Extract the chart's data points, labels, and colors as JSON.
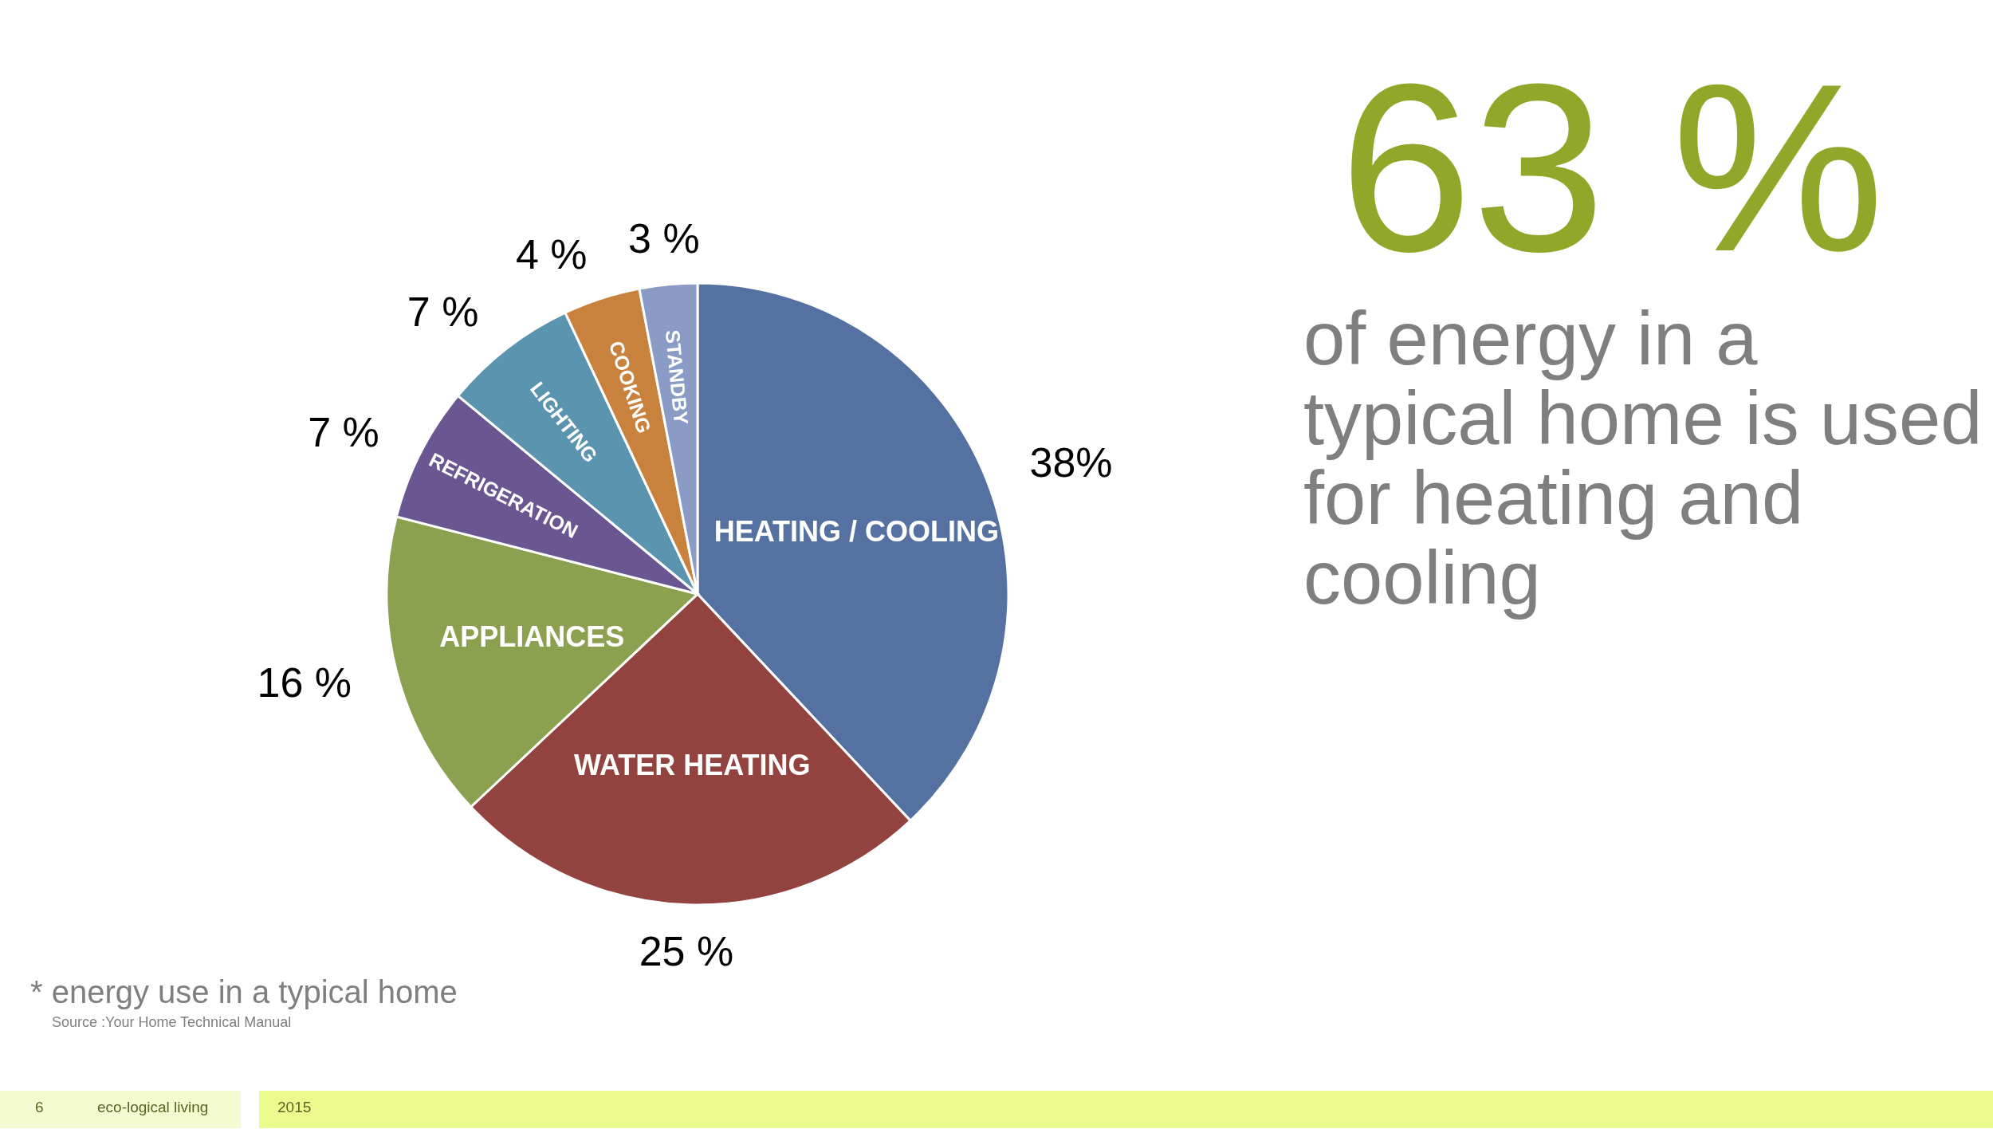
{
  "chart_data": {
    "type": "pie",
    "title": "63 %",
    "subtitle": "of energy in a typical home is used for heating and cooling",
    "categories": [
      "HEATING / COOLING",
      "WATER HEATING",
      "APPLIANCES",
      "REFRIGERATION",
      "LIGHTING",
      "COOKING",
      "STANDBY"
    ],
    "values": [
      38,
      25,
      16,
      7,
      7,
      4,
      3
    ],
    "colors": [
      "#5471a2",
      "#93433f",
      "#8ba150",
      "#6a5792",
      "#5b94ae",
      "#c8823d",
      "#8a9cc6"
    ],
    "value_labels": [
      "38%",
      "25 %",
      "16 %",
      "7 %",
      "7 %",
      "4 %",
      "3 %"
    ],
    "annotations": [
      "* energy use in a typical home",
      "Source :Your Home Technical Manual",
      "6",
      "eco-logical living",
      "2015"
    ]
  }
}
